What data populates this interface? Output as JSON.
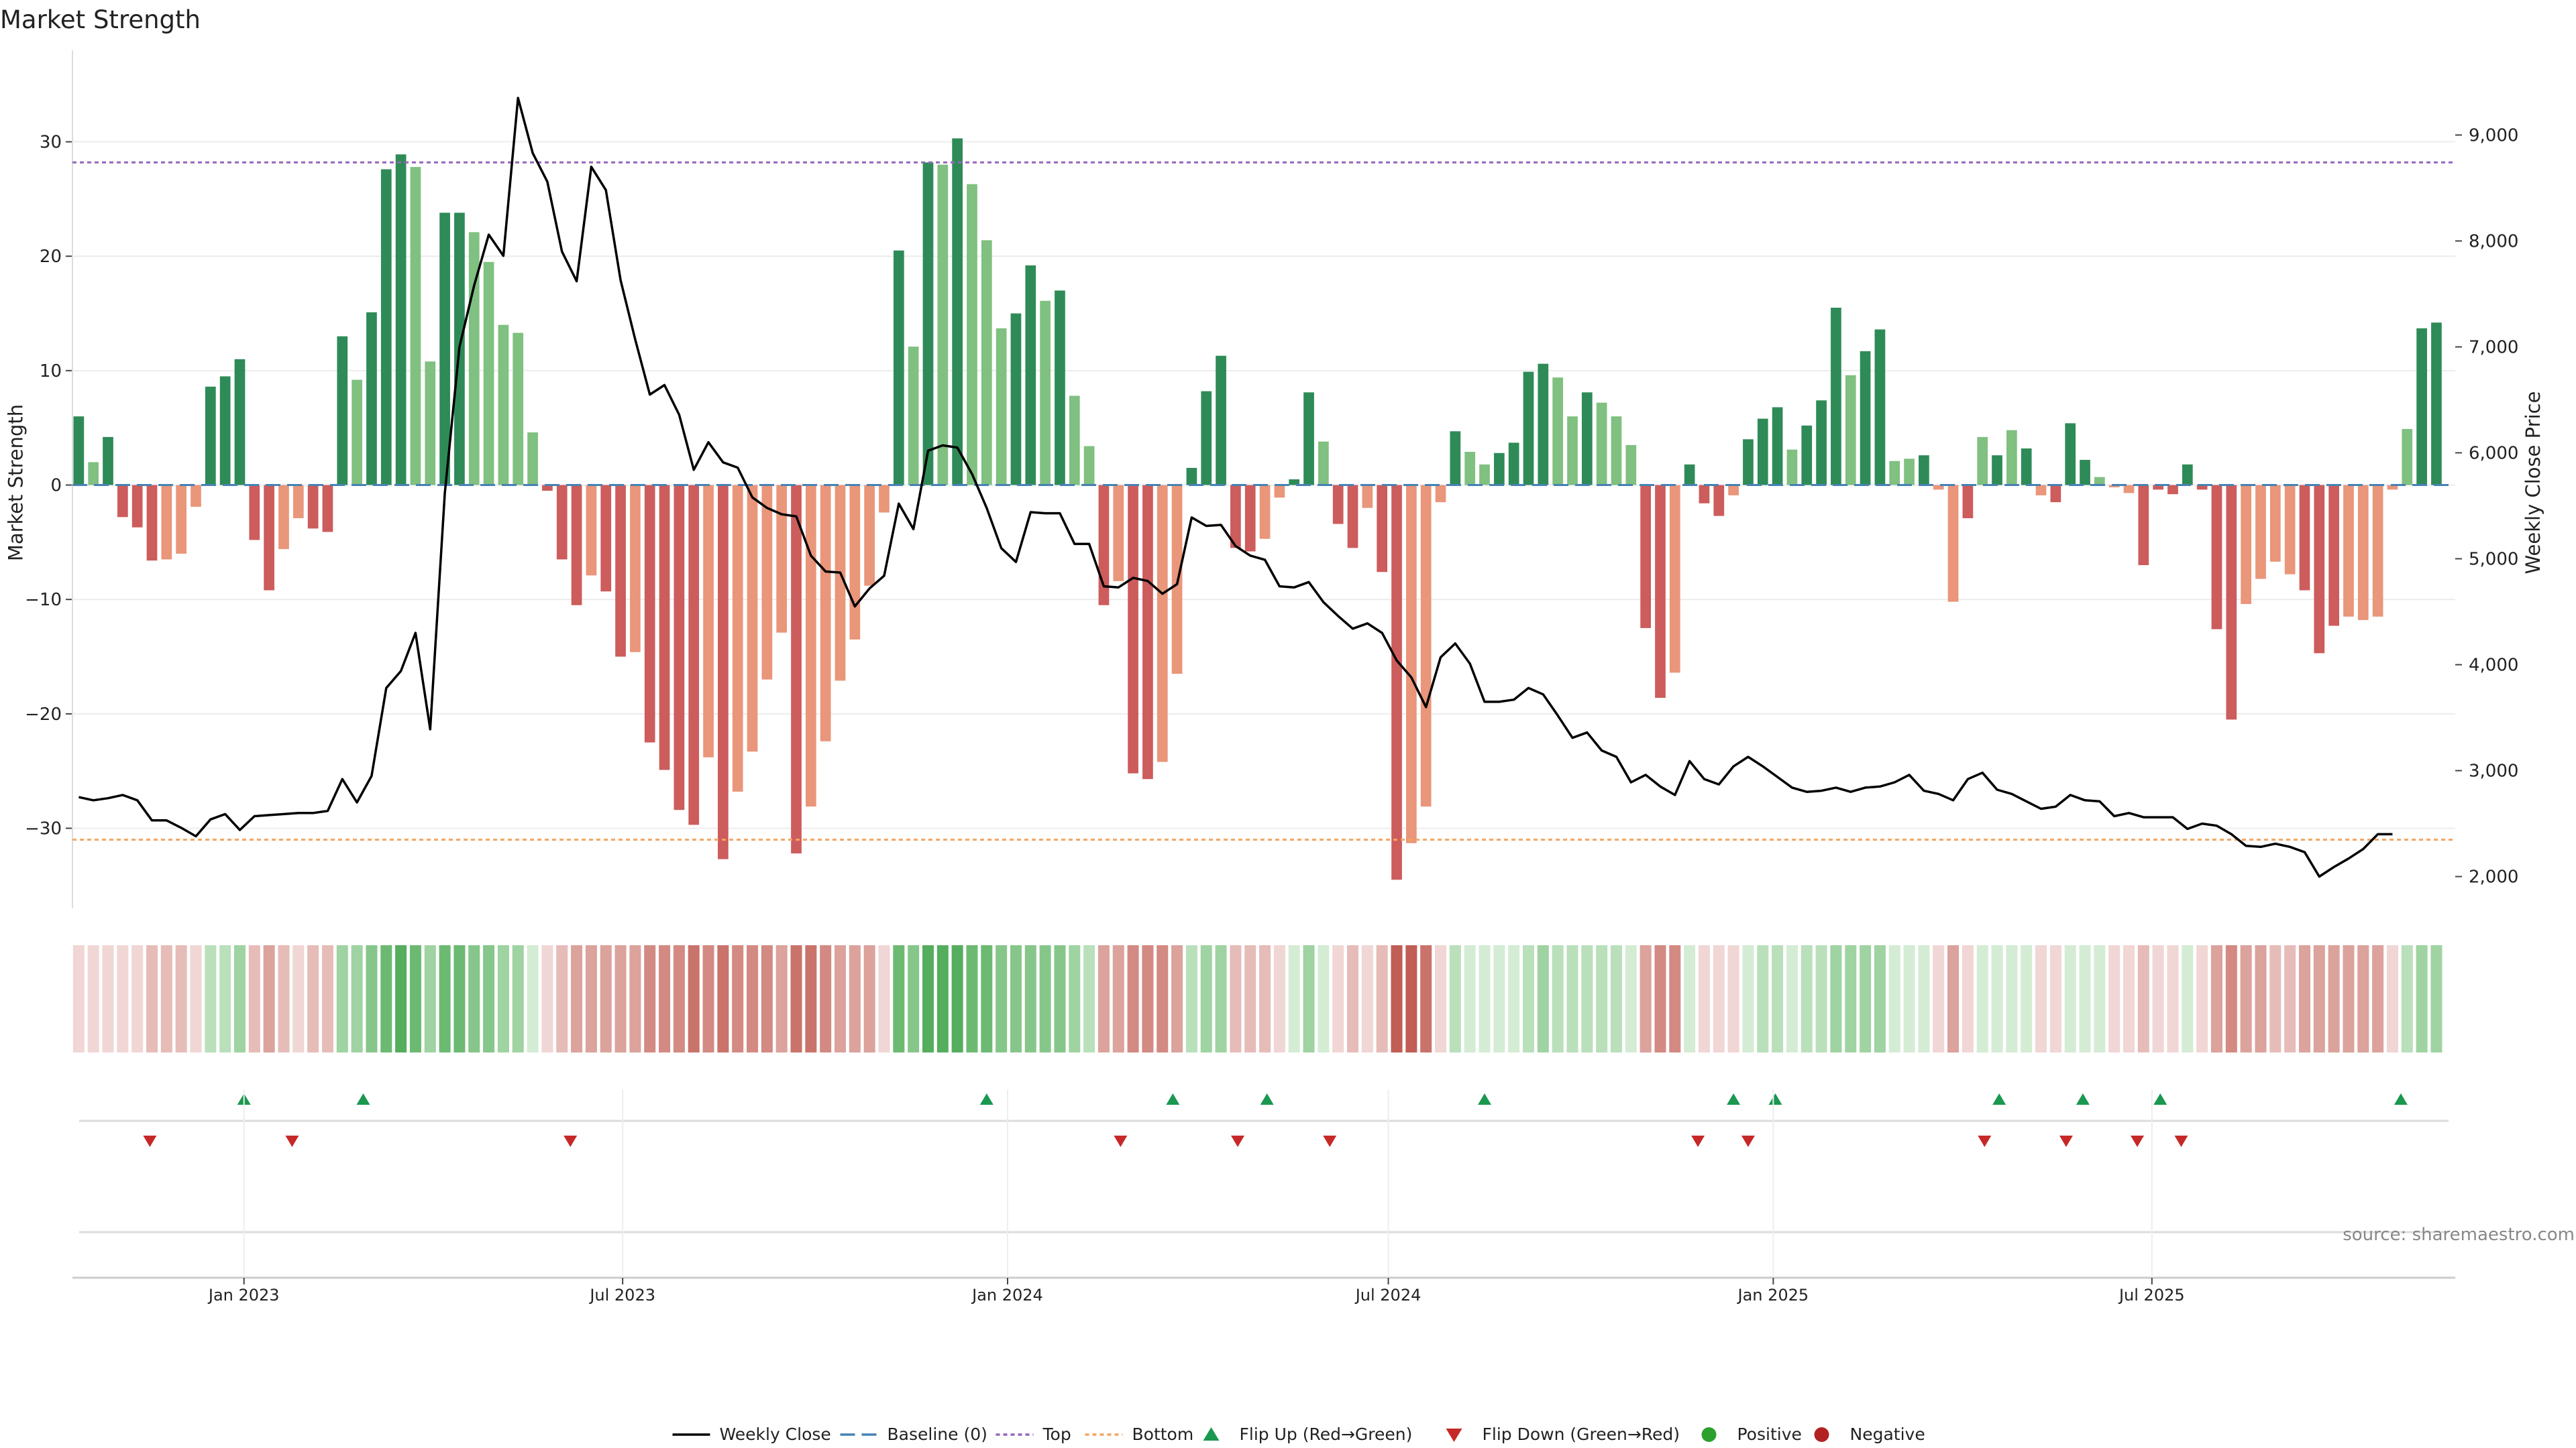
{
  "chart_data": {
    "type": "bar",
    "title": "Market Strength",
    "ylabel_left": "Market Strength",
    "ylabel_right": "Weekly Close Price",
    "ylim_left": [
      -37,
      38
    ],
    "ylim_right": [
      1700,
      9800
    ],
    "yticks_left": [
      -30,
      -20,
      -10,
      0,
      10,
      20,
      30
    ],
    "yticks_right": [
      2000,
      3000,
      4000,
      5000,
      6000,
      7000,
      8000,
      9000
    ],
    "yticks_left_labels": [
      "−30",
      "−20",
      "−10",
      "0",
      "10",
      "20",
      "30"
    ],
    "yticks_right_labels": [
      "2,000",
      "3,000",
      "4,000",
      "5,000",
      "6,000",
      "7,000",
      "8,000",
      "9,000"
    ],
    "x_start": "2022-10-14",
    "x_step_days": 7,
    "xlim": [
      "2022-10-11",
      "2025-11-23"
    ],
    "xticks": [
      {
        "date": "2023-01-01",
        "label": "Jan 2023"
      },
      {
        "date": "2023-07-01",
        "label": "Jul 2023"
      },
      {
        "date": "2024-01-01",
        "label": "Jan 2024"
      },
      {
        "date": "2024-07-01",
        "label": "Jul 2024"
      },
      {
        "date": "2025-01-01",
        "label": "Jan 2025"
      },
      {
        "date": "2025-07-01",
        "label": "Jul 2025"
      }
    ],
    "top_line": 28.2,
    "bottom_line": -31.0,
    "baseline": 0,
    "strength": [
      6,
      2,
      4.2,
      -2.8,
      -3.7,
      -6.6,
      -6.5,
      -6,
      -1.9,
      8.6,
      9.5,
      11,
      -4.8,
      -9.2,
      -5.6,
      -2.9,
      -3.8,
      -4.1,
      13,
      9.2,
      15.1,
      27.6,
      28.9,
      27.8,
      10.8,
      23.8,
      23.8,
      22.1,
      19.5,
      14,
      13.3,
      4.6,
      -0.5,
      -6.5,
      -10.5,
      -7.9,
      -9.3,
      -15,
      -14.6,
      -22.5,
      -24.9,
      -28.4,
      -29.7,
      -23.8,
      -32.7,
      -26.8,
      -23.3,
      -17,
      -12.9,
      -32.2,
      -28.1,
      -22.4,
      -17.1,
      -13.5,
      -8.8,
      -2.4,
      20.5,
      12.1,
      28.2,
      28,
      30.3,
      26.3,
      21.4,
      13.7,
      15,
      19.2,
      16.1,
      17,
      7.8,
      3.4,
      -10.5,
      -8.4,
      -25.2,
      -25.7,
      -24.2,
      -16.5,
      1.5,
      8.2,
      11.3,
      -5.5,
      -5.8,
      -4.7,
      -1.1,
      0.5,
      8.1,
      3.8,
      -3.4,
      -5.5,
      -2,
      -7.6,
      -34.5,
      -31.3,
      -28.1,
      -1.5,
      4.7,
      2.9,
      1.8,
      2.8,
      3.7,
      9.9,
      10.6,
      9.4,
      6,
      8.1,
      7.2,
      6,
      3.5,
      -12.5,
      -18.6,
      -16.4,
      1.8,
      -1.6,
      -2.7,
      -0.9,
      4,
      5.8,
      6.8,
      3.1,
      5.2,
      7.4,
      15.5,
      9.6,
      11.7,
      13.6,
      2.1,
      2.3,
      2.6,
      -0.4,
      -10.2,
      -2.9,
      4.2,
      2.6,
      4.8,
      3.2,
      -0.9,
      -1.5,
      5.4,
      2.2,
      0.7,
      -0.2,
      -0.7,
      -7,
      -0.4,
      -0.8,
      1.8,
      -0.4,
      -12.6,
      -20.5,
      -10.4,
      -8.2,
      -6.7,
      -7.8,
      -9.2,
      -14.7,
      -12.3,
      -11.5,
      -11.8,
      -11.5,
      -0.4,
      4.9,
      13.7,
      14.2
    ],
    "strength_shade": [
      "dark",
      "light",
      "dark",
      "dark",
      "dark",
      "dark",
      "light",
      "light",
      "light",
      "dark",
      "dark",
      "dark",
      "dark",
      "dark",
      "light",
      "light",
      "dark",
      "dark",
      "dark",
      "light",
      "dark",
      "dark",
      "dark",
      "light",
      "light",
      "dark",
      "dark",
      "light",
      "light",
      "light",
      "light",
      "light",
      "dark",
      "dark",
      "dark",
      "light",
      "dark",
      "dark",
      "light",
      "dark",
      "dark",
      "dark",
      "dark",
      "light",
      "dark",
      "light",
      "light",
      "light",
      "light",
      "dark",
      "light",
      "light",
      "light",
      "light",
      "light",
      "light",
      "dark",
      "light",
      "dark",
      "light",
      "dark",
      "light",
      "light",
      "light",
      "dark",
      "dark",
      "light",
      "dark",
      "light",
      "light",
      "dark",
      "light",
      "dark",
      "dark",
      "light",
      "light",
      "dark",
      "dark",
      "dark",
      "dark",
      "dark",
      "light",
      "light",
      "dark",
      "dark",
      "light",
      "dark",
      "dark",
      "light",
      "dark",
      "dark",
      "light",
      "light",
      "light",
      "dark",
      "light",
      "light",
      "dark",
      "dark",
      "dark",
      "dark",
      "light",
      "light",
      "dark",
      "light",
      "light",
      "light",
      "dark",
      "dark",
      "light",
      "dark",
      "dark",
      "dark",
      "light",
      "dark",
      "dark",
      "dark",
      "light",
      "dark",
      "dark",
      "dark",
      "light",
      "dark",
      "dark",
      "light",
      "light",
      "dark",
      "light",
      "light",
      "dark",
      "light",
      "dark",
      "light",
      "dark",
      "light",
      "dark",
      "dark",
      "dark",
      "light",
      "light",
      "light",
      "dark",
      "dark",
      "dark",
      "dark",
      "dark",
      "dark",
      "dark",
      "light",
      "light",
      "light",
      "light",
      "dark",
      "dark",
      "dark",
      "light",
      "light",
      "light",
      "light",
      "light",
      "dark",
      "dark",
      "dark"
    ],
    "close": [
      2750,
      2720,
      2740,
      2770,
      2720,
      2530,
      2530,
      2460,
      2380,
      2540,
      2590,
      2440,
      2570,
      2580,
      2590,
      2600,
      2600,
      2620,
      2920,
      2700,
      2950,
      3780,
      3940,
      4300,
      3390,
      5620,
      7000,
      7580,
      8060,
      7860,
      9350,
      8830,
      8560,
      7900,
      7620,
      8700,
      8480,
      7630,
      7070,
      6550,
      6640,
      6360,
      5840,
      6100,
      5910,
      5860,
      5580,
      5480,
      5420,
      5400,
      5030,
      4880,
      4870,
      4550,
      4720,
      4840,
      5520,
      5280,
      6020,
      6070,
      6050,
      5800,
      5480,
      5100,
      4970,
      5440,
      5430,
      5430,
      5140,
      5140,
      4740,
      4730,
      4820,
      4790,
      4670,
      4760,
      5390,
      5310,
      5320,
      5120,
      5030,
      4990,
      4740,
      4730,
      4780,
      4590,
      4460,
      4340,
      4390,
      4300,
      4040,
      3880,
      3600,
      4070,
      4200,
      4010,
      3650,
      3650,
      3670,
      3780,
      3720,
      3520,
      3310,
      3360,
      3190,
      3130,
      2890,
      2960,
      2850,
      2770,
      3090,
      2920,
      2870,
      3040,
      3130,
      3040,
      2940,
      2840,
      2800,
      2810,
      2840,
      2800,
      2840,
      2850,
      2890,
      2960,
      2810,
      2780,
      2720,
      2920,
      2980,
      2820,
      2780,
      2710,
      2640,
      2660,
      2770,
      2720,
      2710,
      2570,
      2600,
      2560,
      2560,
      2560,
      2450,
      2500,
      2480,
      2400,
      2290,
      2280,
      2310,
      2280,
      2230,
      2000,
      2090,
      2170,
      2260,
      2400,
      2400
    ],
    "heat_levels": [
      -1,
      -1,
      -1,
      -1,
      -1,
      -2,
      -2,
      -2,
      -1,
      2,
      2,
      3,
      -2,
      -3,
      -2,
      -1,
      -2,
      -2,
      3,
      3,
      4,
      5,
      6,
      5,
      3,
      5,
      5,
      4,
      4,
      3,
      3,
      1,
      -1,
      -2,
      -3,
      -3,
      -3,
      -3,
      -3,
      -4,
      -4,
      -4,
      -5,
      -4,
      -5,
      -4,
      -4,
      -4,
      -3,
      -5,
      -5,
      -4,
      -3,
      -3,
      -3,
      -1,
      5,
      4,
      6,
      6,
      6,
      5,
      5,
      4,
      4,
      4,
      4,
      4,
      3,
      2,
      -3,
      -3,
      -4,
      -4,
      -4,
      -3,
      2,
      3,
      3,
      -2,
      -2,
      -2,
      -1,
      1,
      3,
      1,
      -1,
      -2,
      -1,
      -2,
      -6,
      -6,
      -5,
      -1,
      2,
      1,
      1,
      1,
      1,
      2,
      3,
      2,
      2,
      2,
      2,
      2,
      1,
      -3,
      -4,
      -4,
      1,
      -1,
      -1,
      -1,
      1,
      2,
      2,
      1,
      2,
      2,
      3,
      3,
      3,
      3,
      1,
      1,
      1,
      -1,
      -3,
      -1,
      1,
      1,
      1,
      1,
      -1,
      -1,
      1,
      1,
      1,
      -1,
      -1,
      -2,
      -1,
      -1,
      1,
      -1,
      -3,
      -4,
      -3,
      -3,
      -2,
      -2,
      -3,
      -3,
      -3,
      -3,
      -3,
      -3,
      -1,
      2,
      3,
      3
    ],
    "flip_up": [
      "2023-01-01",
      "2023-02-27",
      "2023-12-22",
      "2024-03-20",
      "2024-05-04",
      "2024-08-16",
      "2024-12-13",
      "2025-01-02",
      "2025-04-19",
      "2025-05-29",
      "2025-07-05",
      "2025-10-28"
    ],
    "flip_down": [
      "2022-11-17",
      "2023-01-24",
      "2023-06-06",
      "2024-02-24",
      "2024-04-20",
      "2024-06-03",
      "2024-11-26",
      "2024-12-20",
      "2025-04-12",
      "2025-05-21",
      "2025-06-24",
      "2025-07-15"
    ],
    "source": "source: sharemaestro.com",
    "colors": {
      "green_dark": "#2e8b57",
      "green_light": "#80c080",
      "red_dark": "#cd5c5c",
      "red_light": "#e9967a",
      "top": "#9467bd",
      "bottom": "#f4a460",
      "baseline": "#4682b4",
      "close": "#000000",
      "flip_up": "#1a9850",
      "flip_down": "#c62828",
      "positive": "#2ca02c",
      "negative": "#b22222"
    },
    "legend": [
      "Weekly Close",
      "Baseline (0)",
      "Top",
      "Bottom",
      "Flip Up (Red→Green)",
      "Flip Down (Green→Red)",
      "Positive",
      "Negative"
    ],
    "legend_position": "bottom-center"
  }
}
